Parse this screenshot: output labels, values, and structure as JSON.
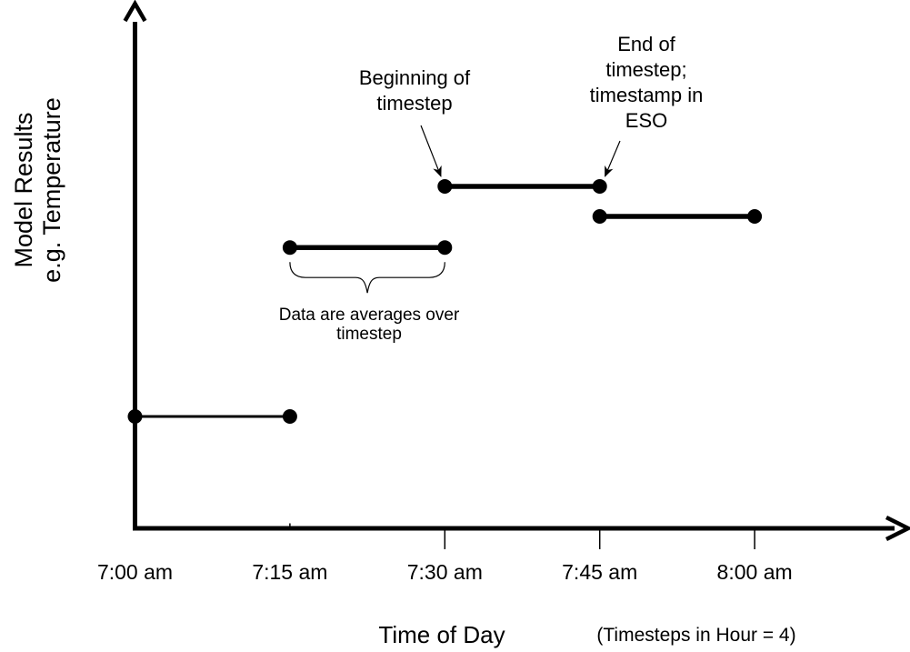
{
  "page": {
    "background": "#ffffff",
    "ink": "#000000"
  },
  "chart_data": {
    "type": "line",
    "subtype": "step-segments-with-endpoint-dots",
    "title": "",
    "xlabel": "Time of Day",
    "xlabel_note": "(Timesteps in Hour = 4)",
    "ylabel_lines": [
      "Model Results",
      "e.g. Temperature"
    ],
    "x_ticks": [
      "7:00 am",
      "7:15 am",
      "7:30 am",
      "7:45 am",
      "8:00 am"
    ],
    "y_axis": {
      "scale": "unlabeled",
      "range": [
        0,
        1
      ]
    },
    "grid": false,
    "legend": false,
    "segments": [
      {
        "from": "7:00 am",
        "to": "7:15 am",
        "level": 0.214,
        "style": "thin"
      },
      {
        "from": "7:15 am",
        "to": "7:30 am",
        "level": 0.54,
        "style": "thick"
      },
      {
        "from": "7:30 am",
        "to": "7:45 am",
        "level": 0.658,
        "style": "thick"
      },
      {
        "from": "7:45 am",
        "to": "8:00 am",
        "level": 0.6,
        "style": "thick"
      }
    ],
    "annotations": [
      {
        "id": "beginning",
        "lines": [
          "Beginning of",
          "timestep"
        ],
        "points_to": "start dot of 7:30-7:45 segment"
      },
      {
        "id": "end",
        "lines": [
          "End of",
          "timestep;",
          "timestamp in",
          "ESO"
        ],
        "points_to": "end dot of 7:30-7:45 segment"
      },
      {
        "id": "averages",
        "lines": [
          "Data are averages over",
          "timestep"
        ],
        "points_to": "brace under 7:15-7:30 segment"
      }
    ]
  }
}
